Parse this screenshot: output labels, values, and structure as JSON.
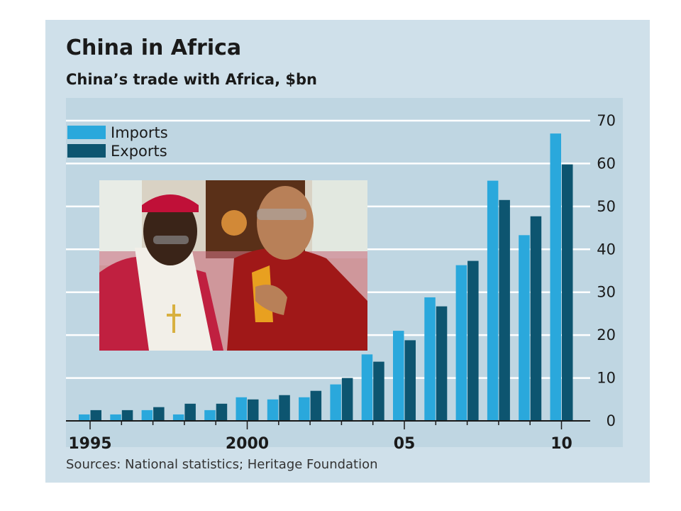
{
  "header": {
    "title": "China in Africa",
    "subtitle": "China’s trade with Africa, $bn"
  },
  "footer": {
    "source": "Sources: National statistics; Heritage Foundation"
  },
  "colors": {
    "imports": "#2aa8dc",
    "exports": "#0d5570",
    "background": "#cfe0ea",
    "plot": "#bfd6e2"
  },
  "chart_data": {
    "type": "bar",
    "categories": [
      "1995",
      "1996",
      "1997",
      "1998",
      "1999",
      "2000",
      "2001",
      "2002",
      "2003",
      "2004",
      "2005",
      "2006",
      "2007",
      "2008",
      "2009",
      "2010"
    ],
    "x_tick_labels": [
      "1995",
      "2000",
      "05",
      "10"
    ],
    "y_ticks": [
      0,
      10,
      20,
      30,
      40,
      50,
      60,
      70
    ],
    "ylim": [
      0,
      70
    ],
    "legend_position": "top-left",
    "series": [
      {
        "name": "Imports",
        "values": [
          1.5,
          1.5,
          2.5,
          1.5,
          2.5,
          5.5,
          5.0,
          5.5,
          8.5,
          15.5,
          21.0,
          28.8,
          36.3,
          56.0,
          43.3,
          67.0
        ]
      },
      {
        "name": "Exports",
        "values": [
          2.5,
          2.5,
          3.2,
          4.0,
          4.0,
          5.0,
          6.0,
          7.0,
          10.0,
          13.8,
          18.8,
          26.7,
          37.3,
          51.5,
          47.7,
          59.8
        ]
      }
    ]
  }
}
